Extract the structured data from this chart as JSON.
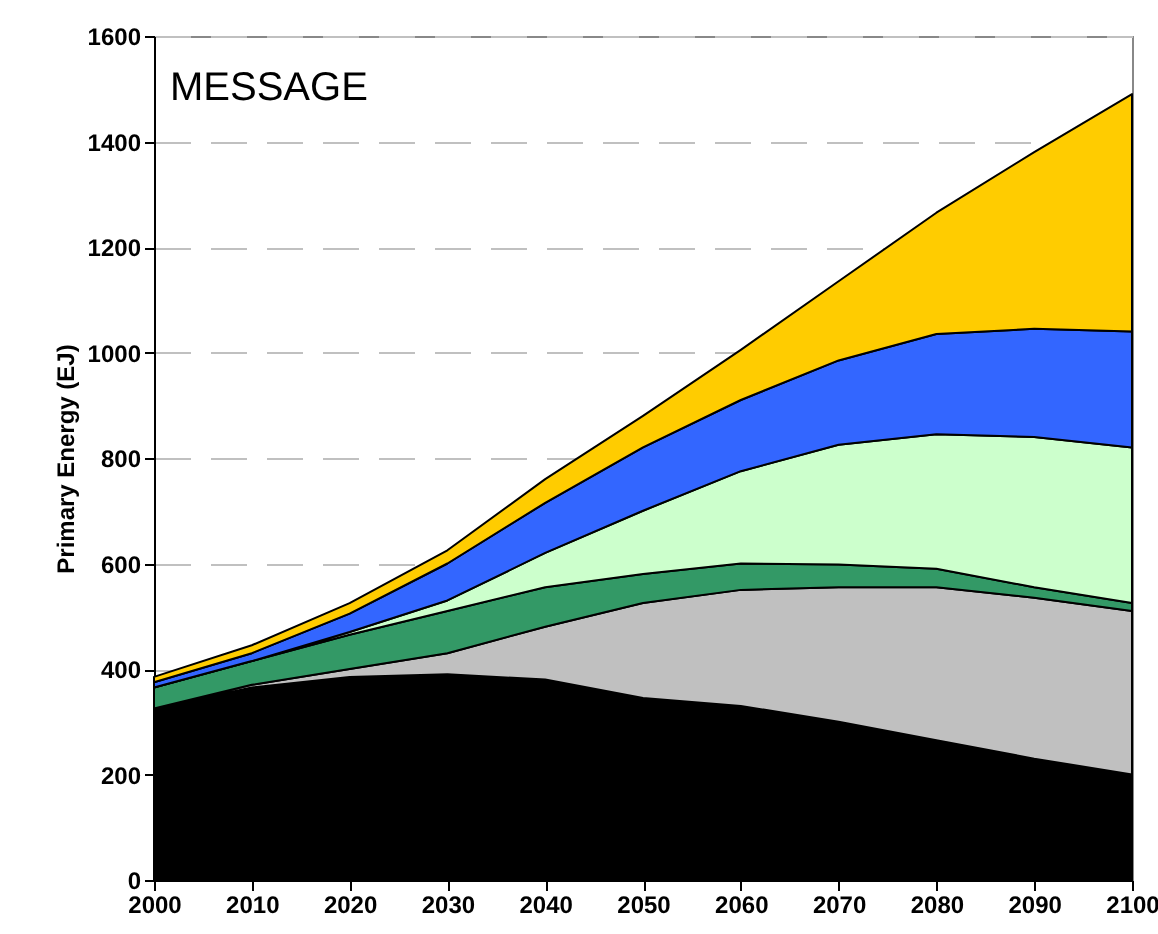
{
  "chart_data": {
    "type": "area",
    "stacked": true,
    "title": "MESSAGE",
    "ylabel": "Primary Energy (EJ)",
    "x": [
      2000,
      2010,
      2020,
      2030,
      2040,
      2050,
      2060,
      2070,
      2080,
      2090,
      2100
    ],
    "series": [
      {
        "color": "#000000",
        "values": [
          325,
          365,
          385,
          390,
          380,
          345,
          330,
          300,
          265,
          230,
          200
        ]
      },
      {
        "color": "#c0c0c0",
        "values": [
          0,
          5,
          15,
          40,
          100,
          180,
          220,
          255,
          290,
          305,
          310
        ]
      },
      {
        "color": "#339966",
        "values": [
          40,
          45,
          65,
          80,
          75,
          55,
          50,
          43,
          35,
          20,
          15
        ]
      },
      {
        "color": "#ccffcc",
        "values": [
          0,
          0,
          5,
          20,
          65,
          120,
          175,
          227,
          255,
          285,
          295
        ]
      },
      {
        "color": "#3366ff",
        "values": [
          10,
          15,
          35,
          70,
          95,
          120,
          135,
          160,
          190,
          205,
          220
        ]
      },
      {
        "color": "#ffcc00",
        "values": [
          10,
          15,
          20,
          25,
          45,
          60,
          95,
          150,
          230,
          335,
          450
        ]
      }
    ],
    "xlim": [
      2000,
      2100
    ],
    "xticks": [
      2000,
      2010,
      2020,
      2030,
      2040,
      2050,
      2060,
      2070,
      2080,
      2090,
      2100
    ],
    "ylim": [
      0,
      1600
    ],
    "yticks": [
      0,
      200,
      400,
      600,
      800,
      1000,
      1200,
      1400,
      1600
    ],
    "grid": "y",
    "legend": false
  }
}
